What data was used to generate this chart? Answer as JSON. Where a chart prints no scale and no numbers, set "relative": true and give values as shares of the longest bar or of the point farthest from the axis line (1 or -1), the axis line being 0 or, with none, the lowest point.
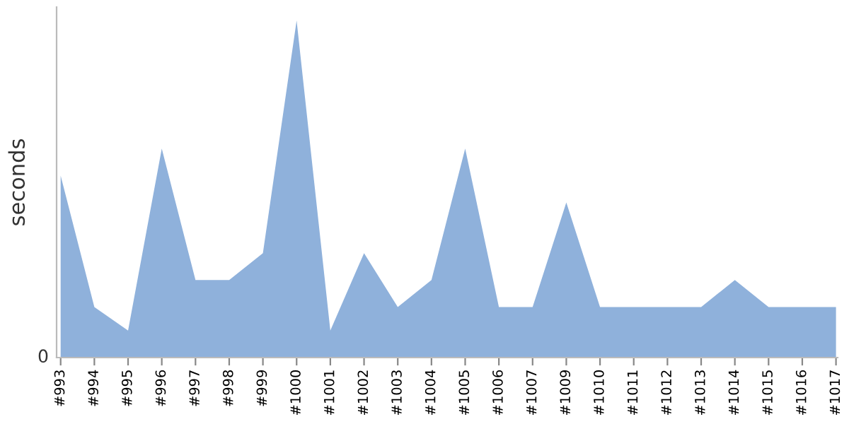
{
  "chart_data": {
    "type": "area",
    "relative": true,
    "ylabel": "seconds",
    "categories": [
      "#993",
      "#994",
      "#995",
      "#996",
      "#997",
      "#998",
      "#999",
      "#1000",
      "#1001",
      "#1002",
      "#1003",
      "#1004",
      "#1005",
      "#1006",
      "#1007",
      "#1009",
      "#1010",
      "#1011",
      "#1012",
      "#1013",
      "#1014",
      "#1015",
      "#1016",
      "#1017"
    ],
    "series": [
      {
        "color": "#8fb1db",
        "values": [
          0.54,
          0.15,
          0.08,
          0.62,
          0.23,
          0.23,
          0.31,
          1,
          0.08,
          0.31,
          0.15,
          0.23,
          0.62,
          0.15,
          0.15,
          0.46,
          0.15,
          0.15,
          0.15,
          0.15,
          0.23,
          0.15,
          0.15,
          0.15
        ]
      }
    ],
    "annotations": [
      "0"
    ],
    "grid": false,
    "legend": false
  }
}
